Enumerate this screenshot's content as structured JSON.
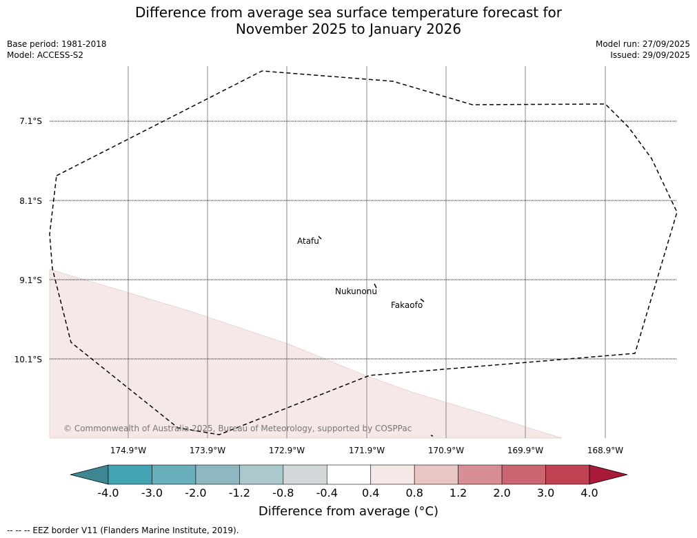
{
  "header": {
    "title_line1": "Difference from average sea surface temperature forecast for",
    "title_line2": "November 2025 to January 2026",
    "base_period": "Base period: 1981-2018",
    "model": "Model: ACCESS-S2",
    "model_run": "Model run: 27/09/2025",
    "issued": "Issued: 29/09/2025"
  },
  "map": {
    "lat_labels": [
      "7.1°S",
      "8.1°S",
      "9.1°S",
      "10.1°S"
    ],
    "lon_labels": [
      "174.9°W",
      "173.9°W",
      "172.9°W",
      "171.9°W",
      "170.9°W",
      "169.9°W",
      "168.9°W"
    ],
    "places": [
      "Atafu",
      "Nukunonu",
      "Fakaofo"
    ],
    "copyright": "© Commonwealth of Australia 2025, Bureau of Meteorology, supported by COSPPac",
    "anomaly_fill_color": "#f5e8e7"
  },
  "colorbar": {
    "ticks": [
      "-4.0",
      "-3.0",
      "-2.0",
      "-1.2",
      "-0.8",
      "-0.4",
      "0.4",
      "0.8",
      "1.2",
      "2.0",
      "3.0",
      "4.0"
    ],
    "colors": [
      "#3e8692",
      "#44a3b2",
      "#69aebb",
      "#8db8c1",
      "#abc8cc",
      "#d2d8da",
      "#ffffff",
      "#f5e8e7",
      "#e8c6c3",
      "#d88e95",
      "#ca6670",
      "#c04252",
      "#a81a37"
    ],
    "title": "Difference from average (°C)"
  },
  "footer": {
    "legend_text": "-- -- -- EEZ border V11 (Flanders Marine Institute, 2019)."
  }
}
